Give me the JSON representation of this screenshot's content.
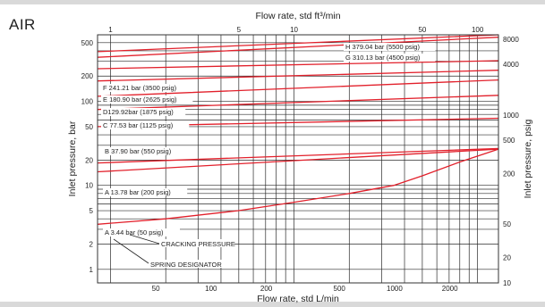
{
  "panel_title": "AIR",
  "chart_data": {
    "type": "line",
    "x_top_label": "Flow rate, std ft³/min",
    "x_top_ticks": [
      "1",
      "5",
      "10",
      "50",
      "100"
    ],
    "x_top_range": [
      0.85,
      130
    ],
    "x_bottom_label": "Flow rate, std L/min",
    "x_bottom_ticks": [
      "50",
      "100",
      "200",
      "500",
      "1000",
      "2000"
    ],
    "y_left_label": "Inlet pressure, bar",
    "y_left_ticks": [
      "500",
      "200",
      "100",
      "50",
      "20",
      "10",
      "5",
      "2",
      "1"
    ],
    "y_left_range": [
      0.69,
      620
    ],
    "y_right_label": "Inlet pressure, psig",
    "y_right_ticks": [
      "8000",
      "4000",
      "1000",
      "500",
      "200",
      "50",
      "20",
      "10"
    ],
    "grid": true,
    "series": [
      {
        "name": "A 3.44 bar (50 psig)",
        "x": [
          0.85,
          2,
          5,
          10,
          20,
          35,
          50,
          80,
          130
        ],
        "y": [
          3.44,
          4.0,
          5.0,
          6.3,
          8.0,
          10.0,
          13.0,
          19.0,
          27.0
        ]
      },
      {
        "name": "A 13.78 bar (200 psig)",
        "x": [
          0.85,
          130
        ],
        "y": [
          14.5,
          27.0
        ]
      },
      {
        "name": "B 37.90 bar (550 psig)",
        "x": [
          0.85,
          130
        ],
        "y": [
          18.5,
          27.5
        ]
      },
      {
        "name": "C 77.53 bar (1125 psig)",
        "x": [
          0.85,
          130
        ],
        "y": [
          50.0,
          63.0
        ]
      },
      {
        "name": "D129.92bar (1875 psig)",
        "x": [
          0.85,
          130
        ],
        "y": [
          80.0,
          118.0
        ]
      },
      {
        "name": "E 180.90 bar (2625 psig)",
        "x": [
          0.85,
          130
        ],
        "y": [
          115.0,
          180.0
        ]
      },
      {
        "name": "F 241.21 bar (3500 psig)",
        "x": [
          0.85,
          130
        ],
        "y": [
          175.0,
          235.0
        ]
      },
      {
        "name": "G 310.13 bar (4500 psig)",
        "x": [
          0.85,
          130
        ],
        "y": [
          245.0,
          305.0
        ]
      },
      {
        "name": "H 379.04 bar (5500 psig)",
        "x": [
          0.85,
          130
        ],
        "y": [
          335.0,
          580.0
        ]
      },
      {
        "name": "",
        "x": [
          0.85,
          130
        ],
        "y": [
          390.0,
          620.0
        ]
      }
    ],
    "annotations": [
      "CRACKING PRESSURE",
      "SPRING DESIGNATOR"
    ],
    "line_color": "#e2202b"
  }
}
